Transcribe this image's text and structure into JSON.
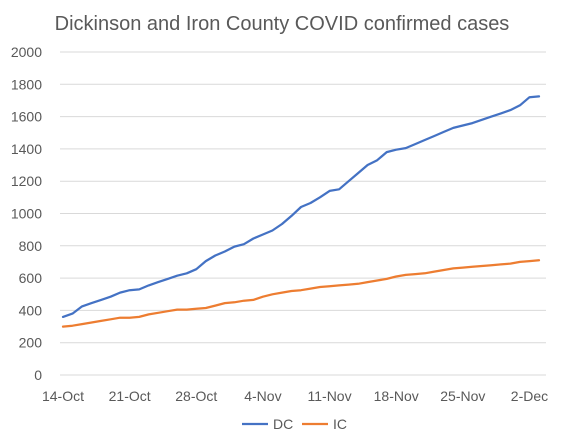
{
  "chart_data": {
    "type": "line",
    "title": "Dickinson and Iron County COVID confirmed cases",
    "xlabel": "",
    "ylabel": "",
    "x_tick_labels": [
      "14-Oct",
      "21-Oct",
      "28-Oct",
      "4-Nov",
      "11-Nov",
      "18-Nov",
      "25-Nov",
      "2-Dec"
    ],
    "y_tick_labels": [
      "0",
      "200",
      "400",
      "600",
      "800",
      "1000",
      "1200",
      "1400",
      "1600",
      "1800",
      "2000"
    ],
    "ylim": [
      0,
      2000
    ],
    "x_domain": [
      "2020-10-14",
      "2020-12-03"
    ],
    "grid": "horizontal",
    "legend_position": "bottom",
    "x": [
      "2020-10-14",
      "2020-10-15",
      "2020-10-16",
      "2020-10-17",
      "2020-10-18",
      "2020-10-19",
      "2020-10-20",
      "2020-10-21",
      "2020-10-22",
      "2020-10-23",
      "2020-10-24",
      "2020-10-25",
      "2020-10-26",
      "2020-10-27",
      "2020-10-28",
      "2020-10-29",
      "2020-10-30",
      "2020-10-31",
      "2020-11-01",
      "2020-11-02",
      "2020-11-03",
      "2020-11-04",
      "2020-11-05",
      "2020-11-06",
      "2020-11-07",
      "2020-11-08",
      "2020-11-09",
      "2020-11-10",
      "2020-11-11",
      "2020-11-12",
      "2020-11-13",
      "2020-11-14",
      "2020-11-15",
      "2020-11-16",
      "2020-11-17",
      "2020-11-18",
      "2020-11-19",
      "2020-11-20",
      "2020-11-21",
      "2020-11-22",
      "2020-11-23",
      "2020-11-24",
      "2020-11-25",
      "2020-11-26",
      "2020-11-27",
      "2020-11-28",
      "2020-11-29",
      "2020-11-30",
      "2020-12-01",
      "2020-12-02",
      "2020-12-03"
    ],
    "series": [
      {
        "name": "DC",
        "color": "#4472C4",
        "values": [
          360,
          380,
          425,
          445,
          465,
          485,
          510,
          525,
          530,
          555,
          575,
          595,
          615,
          630,
          655,
          705,
          740,
          765,
          795,
          810,
          845,
          870,
          895,
          935,
          985,
          1040,
          1065,
          1100,
          1140,
          1150,
          1200,
          1250,
          1300,
          1330,
          1380,
          1395,
          1405,
          1430,
          1455,
          1480,
          1505,
          1530,
          1545,
          1560,
          1580,
          1600,
          1620,
          1640,
          1670,
          1720,
          1725
        ]
      },
      {
        "name": "IC",
        "color": "#ED7D31",
        "values": [
          300,
          305,
          315,
          325,
          335,
          345,
          355,
          355,
          360,
          375,
          385,
          395,
          405,
          405,
          410,
          415,
          430,
          445,
          450,
          460,
          465,
          485,
          500,
          510,
          520,
          525,
          535,
          545,
          550,
          555,
          560,
          565,
          575,
          585,
          595,
          610,
          620,
          625,
          630,
          640,
          650,
          660,
          665,
          670,
          675,
          680,
          685,
          690,
          700,
          705,
          710
        ]
      }
    ]
  }
}
